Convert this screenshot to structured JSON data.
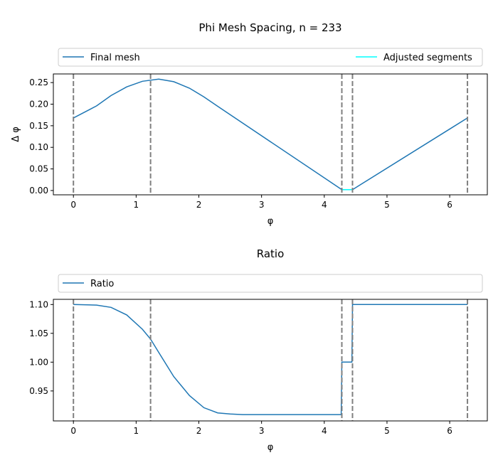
{
  "chart_data": [
    {
      "type": "line",
      "title": "Phi Mesh Spacing, n = 233",
      "xlabel": "φ",
      "ylabel": "Δ φ",
      "xlim": [
        -0.32,
        6.6
      ],
      "ylim": [
        -0.01,
        0.27
      ],
      "xticks": [
        0,
        1,
        2,
        3,
        4,
        5,
        6
      ],
      "yticks": [
        "0.00",
        "0.05",
        "0.10",
        "0.15",
        "0.20",
        "0.25"
      ],
      "grid": false,
      "legend_placement": "top-expanded",
      "vlines": [
        0,
        1.23,
        4.28,
        4.45,
        6.283
      ],
      "vline_color": "#808080",
      "series": [
        {
          "name": "Final mesh",
          "color": "#1f77b4",
          "x": [
            0,
            0.37,
            0.6,
            0.85,
            1.1,
            1.36,
            1.6,
            1.85,
            2.08,
            2.3,
            4.28,
            4.45,
            6.283
          ],
          "y": [
            0.168,
            0.196,
            0.22,
            0.24,
            0.253,
            0.258,
            0.252,
            0.237,
            0.217,
            0.195,
            0.002,
            0.002,
            0.168
          ]
        },
        {
          "name": "Adjusted segments",
          "color": "#00ffff",
          "x": [
            4.28,
            4.45
          ],
          "y": [
            0.002,
            0.002
          ]
        }
      ]
    },
    {
      "type": "line",
      "title": "Ratio",
      "xlabel": "φ",
      "ylabel": "",
      "xlim": [
        -0.32,
        6.6
      ],
      "ylim": [
        0.898,
        1.109
      ],
      "xticks": [
        0,
        1,
        2,
        3,
        4,
        5,
        6
      ],
      "yticks": [
        "0.95",
        "1.00",
        "1.05",
        "1.10"
      ],
      "grid": false,
      "legend_placement": "top-expanded",
      "vlines": [
        0,
        1.23,
        4.28,
        4.45,
        6.283
      ],
      "vline_color": "#808080",
      "series": [
        {
          "name": "Ratio",
          "color": "#1f77b4",
          "x": [
            0,
            0.37,
            0.6,
            0.85,
            1.1,
            1.23,
            1.36,
            1.6,
            1.85,
            2.08,
            2.3,
            2.5,
            2.7,
            4.27,
            4.28,
            4.44,
            4.45,
            6.283
          ],
          "y": [
            1.1,
            1.099,
            1.095,
            1.082,
            1.057,
            1.04,
            1.017,
            0.975,
            0.942,
            0.921,
            0.912,
            0.91,
            0.909,
            0.909,
            1.0,
            1.0,
            1.1,
            1.1
          ]
        }
      ]
    }
  ]
}
